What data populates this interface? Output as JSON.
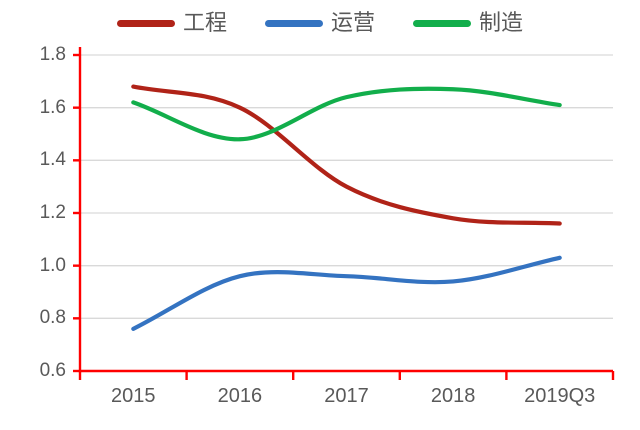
{
  "chart_data": {
    "type": "line",
    "title": "",
    "categories": [
      "2015",
      "2016",
      "2017",
      "2018",
      "2019Q3"
    ],
    "series": [
      {
        "name": "工程",
        "color": "#B02318",
        "values": [
          1.68,
          1.6,
          1.3,
          1.18,
          1.16
        ]
      },
      {
        "name": "运营",
        "color": "#3473C1",
        "values": [
          0.76,
          0.96,
          0.96,
          0.94,
          1.03
        ]
      },
      {
        "name": "制造",
        "color": "#12AE4B",
        "values": [
          1.62,
          1.48,
          1.64,
          1.67,
          1.61
        ]
      }
    ],
    "yticks": [
      "1.8",
      "1.6",
      "1.4",
      "1.2",
      "1.0",
      "0.8",
      "0.6"
    ],
    "ytick_values": [
      1.8,
      1.6,
      1.4,
      1.2,
      1.0,
      0.8,
      0.6
    ],
    "ylim": [
      0.6,
      1.8
    ],
    "grid": true,
    "smooth": true,
    "legend_position": "top"
  },
  "style": {
    "axis_color": "#FF0000",
    "gridline_color": "#D9D9D9",
    "label_color": "#595959",
    "background": "#FFFFFF"
  }
}
